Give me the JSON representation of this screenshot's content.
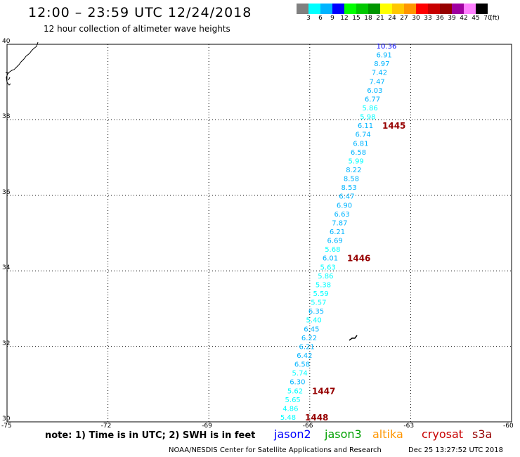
{
  "header": {
    "title": "12:00 – 23:59 UTC 12/24/2018",
    "subtitle": "12 hour collection of altimeter wave heights"
  },
  "legend": {
    "colors": [
      "#808080",
      "#00ffff",
      "#00b4ff",
      "#0000ff",
      "#00ff00",
      "#00c800",
      "#009600",
      "#ffff00",
      "#ffc800",
      "#ff9600",
      "#ff0000",
      "#c80000",
      "#960000",
      "#a000a0",
      "#ff80ff",
      "#000000"
    ],
    "labels": [
      "3",
      "6",
      "9",
      "12",
      "15",
      "18",
      "21",
      "24",
      "27",
      "30",
      "33",
      "36",
      "39",
      "42",
      "45",
      "70",
      "(ft)"
    ]
  },
  "axes": {
    "y_labels": [
      "40",
      "38",
      "36",
      "34",
      "32",
      "30"
    ],
    "x_labels": [
      "-75",
      "-72",
      "-69",
      "-66",
      "-63",
      "-60"
    ]
  },
  "track": {
    "wave_heights": [
      "10.36",
      "6.91",
      "8.97",
      "7.42",
      "7.47",
      "6.03",
      "6.77",
      "5.86",
      "5.98",
      "6.11",
      "6.74",
      "6.81",
      "6.58",
      "5.99",
      "8.22",
      "8.58",
      "8.53",
      "6.47",
      "6.90",
      "6.63",
      "7.87",
      "6.21",
      "6.69",
      "5.68",
      "6.01",
      "5.63",
      "5.86",
      "5.38",
      "5.59",
      "5.57",
      "6.35",
      "5.40",
      "6.45",
      "6.22",
      "6.21",
      "6.42",
      "6.58",
      "5.74",
      "6.30",
      "5.62",
      "5.65",
      "4.86",
      "5.48"
    ],
    "times": [
      "1445",
      "1446",
      "1447",
      "1448"
    ]
  },
  "footer": {
    "note": "note: 1) Time is in UTC; 2) SWH is in feet",
    "satellites": [
      "jason2",
      "jason3",
      "altika",
      "cryosat",
      "s3a"
    ],
    "credit": "NOAA/NESDIS Center for Satellite Applications and Research",
    "timestamp": "Dec 25 13:27:52 UTC 2018"
  },
  "colors": {
    "swh_cyan": "#00ffff",
    "swh_lightblue": "#00b4ff",
    "swh_blue": "#0000ff",
    "time_label": "#960000",
    "jason2": "#0000ff",
    "jason3": "#00a000",
    "altika": "#ff9600",
    "cryosat": "#c80000",
    "s3a": "#960000"
  }
}
